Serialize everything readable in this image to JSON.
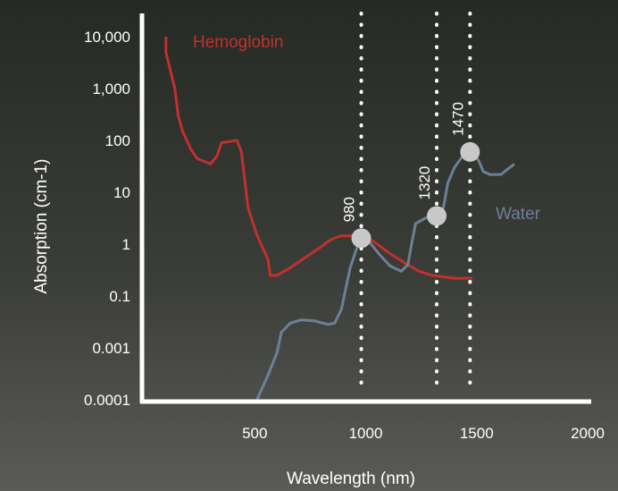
{
  "chart_data": {
    "type": "line",
    "ylabel": "Absorption (cm-1)",
    "xlabel": "Wavelength (nm)",
    "y_scale": "log",
    "xlim": [
      0,
      2000
    ],
    "x_ticks": [
      {
        "value": 500,
        "label": "500"
      },
      {
        "value": 1000,
        "label": "1000"
      },
      {
        "value": 1500,
        "label": "1500"
      },
      {
        "value": 2000,
        "label": "2000"
      }
    ],
    "y_ticks": [
      "10,000",
      "1,000",
      "100",
      "10",
      "1",
      "0.1",
      "0.001",
      "0.0001"
    ],
    "series": [
      {
        "name": "Hemoglobin",
        "color": "#c0312f",
        "points": [
          {
            "x": 100,
            "y": "10,000"
          },
          {
            "x": 100,
            "y": 5000
          },
          {
            "x": 140,
            "y": 1000
          },
          {
            "x": 155,
            "y": 300
          },
          {
            "x": 175,
            "y": 150
          },
          {
            "x": 210,
            "y": 70
          },
          {
            "x": 240,
            "y": 45
          },
          {
            "x": 300,
            "y": 35
          },
          {
            "x": 330,
            "y": 50
          },
          {
            "x": 350,
            "y": 90
          },
          {
            "x": 420,
            "y": 100
          },
          {
            "x": 440,
            "y": 60
          },
          {
            "x": 470,
            "y": 5
          },
          {
            "x": 510,
            "y": 1.5
          },
          {
            "x": 560,
            "y": 0.5
          },
          {
            "x": 570,
            "y": 0.25
          },
          {
            "x": 600,
            "y": 0.25
          },
          {
            "x": 660,
            "y": 0.35
          },
          {
            "x": 740,
            "y": 0.6
          },
          {
            "x": 800,
            "y": 0.9
          },
          {
            "x": 840,
            "y": 1.2
          },
          {
            "x": 890,
            "y": 1.45
          },
          {
            "x": 980,
            "y": 1.45
          },
          {
            "x": 1040,
            "y": 1.1
          },
          {
            "x": 1100,
            "y": 0.7
          },
          {
            "x": 1170,
            "y": 0.45
          },
          {
            "x": 1240,
            "y": 0.3
          },
          {
            "x": 1300,
            "y": 0.25
          },
          {
            "x": 1400,
            "y": 0.22
          },
          {
            "x": 1480,
            "y": 0.22
          }
        ]
      },
      {
        "name": "Water",
        "color": "#6d8096",
        "points": [
          {
            "x": 510,
            "y": 0.0001
          },
          {
            "x": 560,
            "y": 0.0003
          },
          {
            "x": 600,
            "y": 0.0008
          },
          {
            "x": 620,
            "y": 0.004
          },
          {
            "x": 660,
            "y": 0.009
          },
          {
            "x": 710,
            "y": 0.012
          },
          {
            "x": 770,
            "y": 0.011
          },
          {
            "x": 830,
            "y": 0.008
          },
          {
            "x": 860,
            "y": 0.009
          },
          {
            "x": 890,
            "y": 0.03
          },
          {
            "x": 930,
            "y": 0.35
          },
          {
            "x": 975,
            "y": 1.3
          },
          {
            "x": 1010,
            "y": 1.2
          },
          {
            "x": 1060,
            "y": 0.65
          },
          {
            "x": 1110,
            "y": 0.38
          },
          {
            "x": 1160,
            "y": 0.3
          },
          {
            "x": 1190,
            "y": 0.4
          },
          {
            "x": 1210,
            "y": 1.2
          },
          {
            "x": 1225,
            "y": 2.5
          },
          {
            "x": 1270,
            "y": 3.2
          },
          {
            "x": 1320,
            "y": 3.5
          },
          {
            "x": 1350,
            "y": 5
          },
          {
            "x": 1370,
            "y": 15
          },
          {
            "x": 1400,
            "y": 30
          },
          {
            "x": 1450,
            "y": 60
          },
          {
            "x": 1480,
            "y": 62
          },
          {
            "x": 1510,
            "y": 40
          },
          {
            "x": 1530,
            "y": 25
          },
          {
            "x": 1560,
            "y": 22
          },
          {
            "x": 1610,
            "y": 22
          },
          {
            "x": 1640,
            "y": 28
          },
          {
            "x": 1670,
            "y": 35
          }
        ]
      }
    ],
    "markers": [
      {
        "label": "980",
        "x": 980,
        "y": 1.3
      },
      {
        "label": "1320",
        "x": 1320,
        "y": 3.5
      },
      {
        "label": "1470",
        "x": 1470,
        "y": 60
      }
    ],
    "marker_color": "#c8c8c8",
    "axis_color": "#ffffff",
    "text_color": "#ffffff"
  }
}
